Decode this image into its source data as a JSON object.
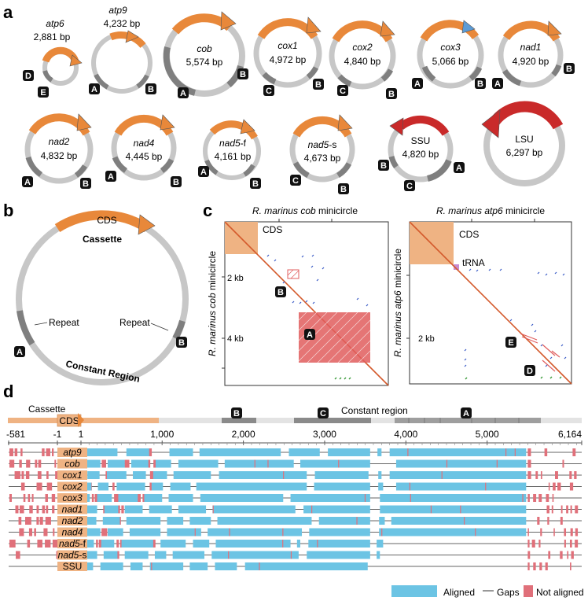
{
  "panels": {
    "a": "a",
    "b": "b",
    "c": "c",
    "d": "d"
  },
  "colors": {
    "cds": "#e8883a",
    "rrna": "#c92a2a",
    "ring": "#c7c7c7",
    "dark": "#7f7f7f",
    "aligned": "#6cc4e4",
    "not_aligned": "#e0707a",
    "gap": "#666666",
    "cds_bar": "#efb383"
  },
  "minicircles": {
    "atp6": {
      "name": "atp6",
      "size": "2,881 bp",
      "labels": [
        "D",
        "E"
      ]
    },
    "atp9": {
      "name": "atp9",
      "size": "4,232 bp",
      "labels": [
        "A",
        "B"
      ]
    },
    "cob": {
      "name": "cob",
      "size": "5,574 bp",
      "labels": [
        "A",
        "B"
      ]
    },
    "cox1": {
      "name": "cox1",
      "size": "4,972 bp",
      "labels": [
        "C",
        "B"
      ]
    },
    "cox2": {
      "name": "cox2",
      "size": "4,840 bp",
      "labels": [
        "C",
        "B"
      ]
    },
    "cox3": {
      "name": "cox3",
      "size": "5,066 bp",
      "labels": [
        "A",
        "B"
      ]
    },
    "nad1": {
      "name": "nad1",
      "size": "4,920 bp",
      "labels": [
        "A",
        "B"
      ]
    },
    "nad2": {
      "name": "nad2",
      "size": "4,832 bp",
      "labels": [
        "A",
        "B"
      ]
    },
    "nad4": {
      "name": "nad4",
      "size": "4,445 bp",
      "labels": [
        "A",
        "B"
      ]
    },
    "nad5f": {
      "name": "nad5",
      "suffix": "-f",
      "size": "4,161 bp",
      "labels": [
        "A",
        "B"
      ]
    },
    "nad5s": {
      "name": "nad5",
      "suffix": "-s",
      "size": "4,673 bp",
      "labels": [
        "C",
        "B"
      ]
    },
    "ssu": {
      "name": "SSU",
      "size": "4,820 bp",
      "labels": [
        "B",
        "C",
        "A"
      ]
    },
    "lsu": {
      "name": "LSU",
      "size": "6,297 bp"
    }
  },
  "schematic": {
    "cds": "CDS",
    "cassette": "Cassette",
    "constant": "Constant Region",
    "repeat_left": "Repeat",
    "repeat_right": "Repeat",
    "label_left": "A",
    "label_right": "B"
  },
  "dotplots": {
    "cob": {
      "title_species": "R. marinus",
      "title_gene": "cob",
      "title_rest": "minicircle",
      "ylabel_species": "R. marinus",
      "ylabel_gene": "cob",
      "ylabel_rest": "minicircle",
      "ticks": [
        "2 kb",
        "4 kb"
      ],
      "cds": "CDS",
      "marks": [
        "B",
        "A"
      ]
    },
    "atp6": {
      "title_species": "R. marinus",
      "title_gene": "atp6",
      "title_rest": "minicircle",
      "ylabel_species": "R. marinus",
      "ylabel_gene": "atp6",
      "ylabel_rest": "minicircle",
      "ticks": [
        "2 kb"
      ],
      "cds": "CDS",
      "trna": "tRNA",
      "marks": [
        "E",
        "D"
      ]
    }
  },
  "alignment": {
    "cassette": "Cassette",
    "cds": "CDS",
    "constant": "Constant region",
    "blocks": [
      "B",
      "C",
      "A"
    ],
    "axis": [
      {
        "label": "-581",
        "value": -581
      },
      {
        "label": "-1",
        "value": -1
      },
      {
        "label": "1",
        "value": 1
      },
      {
        "label": "1,000",
        "value": 1000
      },
      {
        "label": "2,000",
        "value": 2000
      },
      {
        "label": "3,000",
        "value": 3000
      },
      {
        "label": "4,000",
        "value": 4000
      },
      {
        "label": "5,000",
        "value": 5000
      },
      {
        "label": "6,164",
        "value": 6164
      }
    ],
    "rows": [
      {
        "name": "atp9",
        "italic": true,
        "aligned": [
          [
            20,
            450
          ],
          [
            560,
            840
          ],
          [
            1090,
            1380
          ],
          [
            1460,
            2460
          ],
          [
            2560,
            2940
          ],
          [
            3040,
            3560
          ],
          [
            3650,
            3700
          ],
          [
            3800,
            5480
          ]
        ]
      },
      {
        "name": "cob",
        "italic": true,
        "aligned": [
          [
            60,
            240
          ],
          [
            330,
            540
          ],
          [
            620,
            830
          ],
          [
            920,
            1110
          ],
          [
            1200,
            1690
          ],
          [
            1770,
            2620
          ],
          [
            2700,
            3560
          ],
          [
            3880,
            5480
          ]
        ]
      },
      {
        "name": "cox1",
        "italic": true,
        "aligned": [
          [
            80,
            230
          ],
          [
            320,
            560
          ],
          [
            640,
            800
          ],
          [
            890,
            1060
          ],
          [
            1140,
            1600
          ],
          [
            1700,
            2780
          ],
          [
            2880,
            3540
          ],
          [
            3660,
            3700
          ],
          [
            3800,
            5480
          ]
        ]
      },
      {
        "name": "cox2",
        "italic": true,
        "aligned": [
          [
            0,
            130
          ],
          [
            210,
            340
          ],
          [
            440,
            790
          ],
          [
            870,
            1010
          ],
          [
            1100,
            1350
          ],
          [
            1420,
            2780
          ],
          [
            2870,
            3560
          ],
          [
            3660,
            3720
          ],
          [
            3880,
            5480
          ]
        ]
      },
      {
        "name": "cox3",
        "italic": true,
        "aligned": [
          [
            0,
            110
          ],
          [
            200,
            380
          ],
          [
            460,
            700
          ],
          [
            780,
            1000
          ],
          [
            1080,
            1380
          ],
          [
            1470,
            2490
          ],
          [
            2580,
            3560
          ],
          [
            3680,
            5480
          ]
        ]
      },
      {
        "name": "nad1",
        "italic": true,
        "aligned": [
          [
            20,
            200
          ],
          [
            290,
            460
          ],
          [
            540,
            760
          ],
          [
            840,
            1120
          ],
          [
            1200,
            1540
          ],
          [
            1620,
            2640
          ],
          [
            2740,
            3560
          ],
          [
            3680,
            5480
          ]
        ]
      },
      {
        "name": "nad2",
        "italic": true,
        "aligned": [
          [
            0,
            190
          ],
          [
            270,
            480
          ],
          [
            560,
            980
          ],
          [
            1060,
            1260
          ],
          [
            1340,
            1600
          ],
          [
            1680,
            2840
          ],
          [
            2930,
            3560
          ],
          [
            3670,
            3740
          ],
          [
            3820,
            5480
          ]
        ]
      },
      {
        "name": "nad4",
        "italic": true,
        "aligned": [
          [
            60,
            240
          ],
          [
            330,
            520
          ],
          [
            600,
            980
          ],
          [
            1060,
            1480
          ],
          [
            1560,
            2720
          ],
          [
            2810,
            3560
          ],
          [
            3670,
            5480
          ]
        ]
      },
      {
        "name": "nad5",
        "suffix": "-f",
        "italic": true,
        "aligned": [
          [
            0,
            160
          ],
          [
            250,
            410
          ],
          [
            500,
            890
          ],
          [
            980,
            1290
          ],
          [
            1380,
            1580
          ],
          [
            1660,
            2580
          ],
          [
            2660,
            2700
          ],
          [
            2800,
            3560
          ],
          [
            3640,
            3720
          ]
        ]
      },
      {
        "name": "nad5",
        "suffix": "-s",
        "italic": true,
        "aligned": [
          [
            0,
            200
          ],
          [
            280,
            450
          ],
          [
            540,
            830
          ],
          [
            910,
            1050
          ],
          [
            1130,
            1520
          ],
          [
            1610,
            2680
          ],
          [
            2780,
            3560
          ],
          [
            3640,
            3680
          ]
        ]
      },
      {
        "name": "SSU",
        "italic": false,
        "aligned": [
          [
            0,
            150
          ],
          [
            240,
            520
          ],
          [
            610,
            760
          ],
          [
            850,
            1260
          ],
          [
            1340,
            1560
          ],
          [
            1650,
            1920
          ],
          [
            2020,
            3530
          ]
        ]
      }
    ],
    "legend": {
      "aligned": "Aligned",
      "gaps": "Gaps",
      "not_aligned": "Not aligned"
    }
  }
}
